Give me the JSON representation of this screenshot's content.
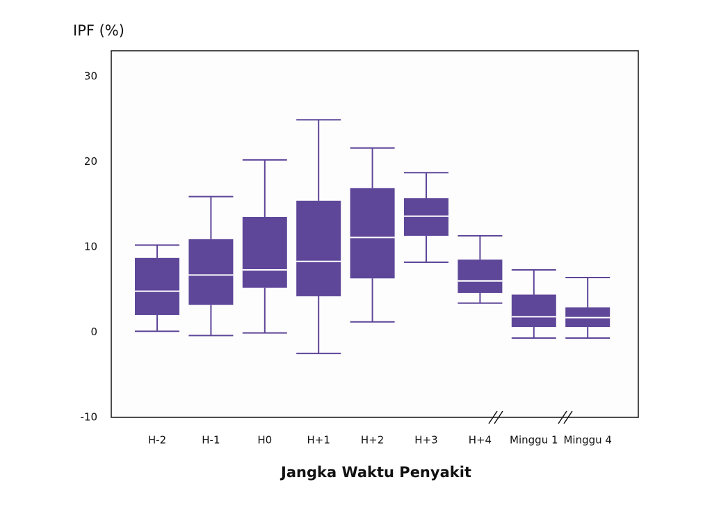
{
  "chart_data": {
    "type": "box",
    "y_label": "IPF (%)",
    "x_label": "Jangka Waktu Penyakit",
    "categories": [
      "H-2",
      "H-1",
      "H0",
      "H+1",
      "H+2",
      "H+3",
      "H+4",
      "Minggu 1",
      "Minggu 4"
    ],
    "color": "#5e4699",
    "boxes": [
      {
        "low": 0.1,
        "q1": 2.0,
        "median": 4.8,
        "q3": 8.7,
        "high": 10.2
      },
      {
        "low": -0.4,
        "q1": 3.2,
        "median": 6.7,
        "q3": 10.9,
        "high": 15.9
      },
      {
        "low": -0.1,
        "q1": 5.2,
        "median": 7.3,
        "q3": 13.5,
        "high": 20.2
      },
      {
        "low": -2.5,
        "q1": 4.2,
        "median": 8.3,
        "q3": 15.4,
        "high": 24.9
      },
      {
        "low": 1.2,
        "q1": 6.3,
        "median": 11.1,
        "q3": 16.9,
        "high": 21.6
      },
      {
        "low": 8.2,
        "q1": 11.3,
        "median": 13.6,
        "q3": 15.7,
        "high": 18.7
      },
      {
        "low": 3.4,
        "q1": 4.6,
        "median": 6.0,
        "q3": 8.5,
        "high": 11.3
      },
      {
        "low": -0.7,
        "q1": 0.6,
        "median": 1.8,
        "q3": 4.4,
        "high": 7.3
      },
      {
        "low": -0.7,
        "q1": 0.6,
        "median": 1.7,
        "q3": 2.9,
        "high": 6.4
      }
    ],
    "ylim": [
      -10,
      33
    ],
    "yticks": [
      -10,
      0,
      10,
      20,
      30
    ]
  }
}
